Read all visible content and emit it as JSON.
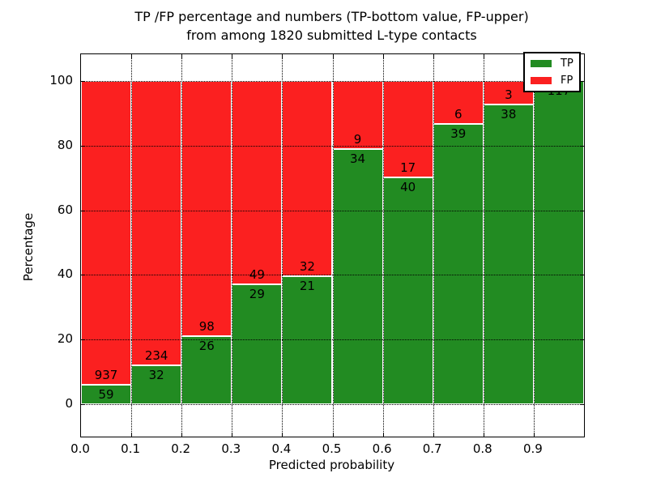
{
  "chart_data": {
    "type": "bar",
    "stacked": true,
    "normalized_to_percent": true,
    "title": "TP /FP percentage and numbers (TP-bottom value, FP-upper) from among 1820 submitted L-type contacts",
    "title_line1": "TP /FP percentage and numbers (TP-bottom value, FP-upper)",
    "title_line2": "from among 1820 submitted L-type contacts",
    "xlabel": "Predicted probability",
    "ylabel": "Percentage",
    "x_ticks": [
      "0.0",
      "0.1",
      "0.2",
      "0.3",
      "0.4",
      "0.5",
      "0.6",
      "0.7",
      "0.8",
      "0.9"
    ],
    "y_ticks": [
      "0",
      "20",
      "40",
      "60",
      "80",
      "100"
    ],
    "xlim": [
      0.0,
      1.0
    ],
    "ylim": [
      -10,
      108
    ],
    "grid": "dotted",
    "total_contacts": 1820,
    "categories": [
      "0.0-0.1",
      "0.1-0.2",
      "0.2-0.3",
      "0.3-0.4",
      "0.4-0.5",
      "0.5-0.6",
      "0.6-0.7",
      "0.7-0.8",
      "0.8-0.9",
      "0.9-1.0"
    ],
    "series": [
      {
        "name": "TP",
        "color": "#228b22",
        "values": [
          59,
          32,
          26,
          29,
          21,
          34,
          40,
          39,
          38,
          117
        ]
      },
      {
        "name": "FP",
        "color": "#fb2020",
        "values": [
          937,
          234,
          98,
          49,
          32,
          9,
          17,
          6,
          3,
          0
        ]
      }
    ],
    "legend": {
      "position": "upper right",
      "entries": [
        {
          "label": "TP",
          "color": "#228b22"
        },
        {
          "label": "FP",
          "color": "#fb2020"
        }
      ]
    }
  }
}
